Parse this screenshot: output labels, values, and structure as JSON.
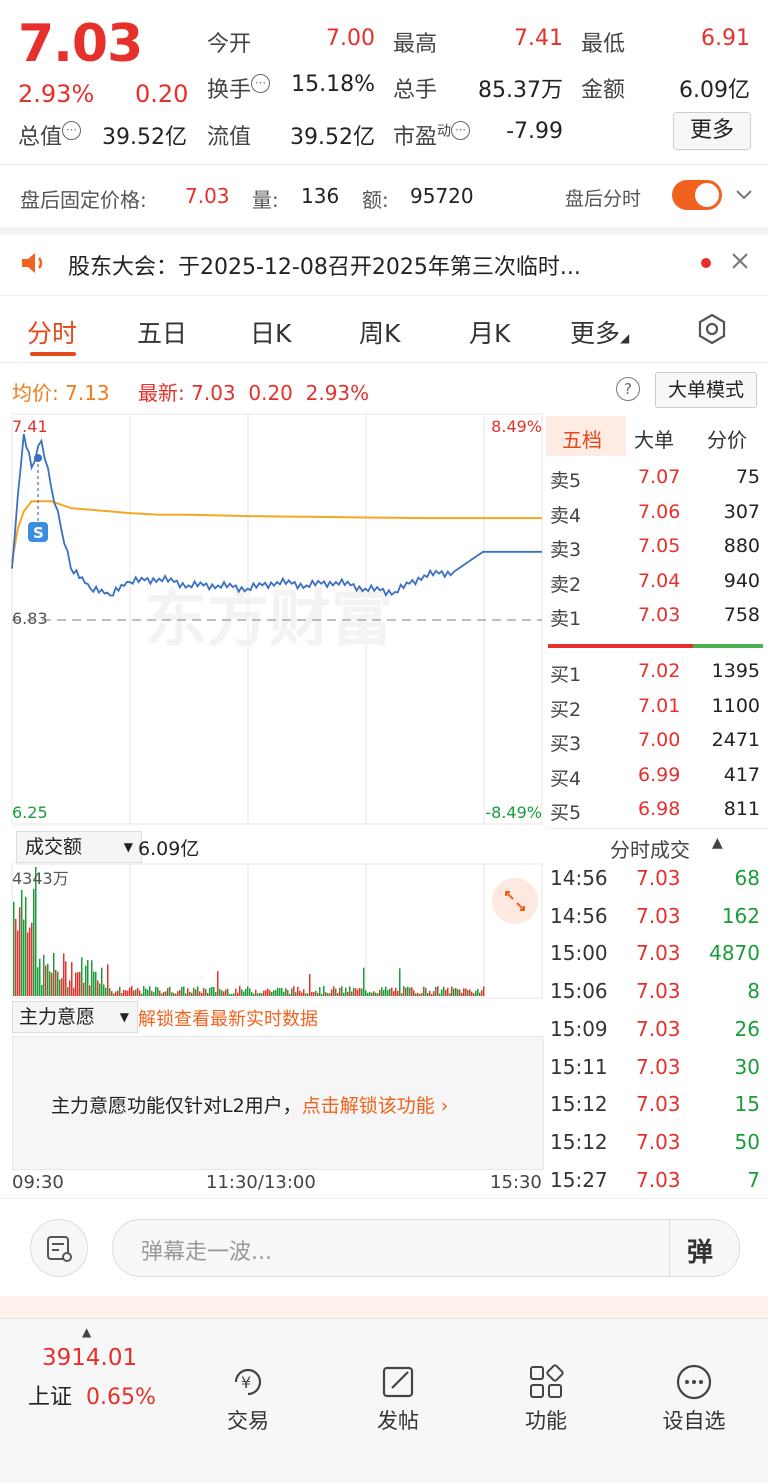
{
  "quote": {
    "price": "7.03",
    "change_pct": "2.93%",
    "change": "0.20",
    "open_label": "今开",
    "open": "7.00",
    "high_label": "最高",
    "high": "7.41",
    "low_label": "最低",
    "low": "6.91",
    "turnover_label": "换手",
    "turnover": "15.18%",
    "volume_label": "总手",
    "volume": "85.37万",
    "amount_label": "金额",
    "amount": "6.09亿",
    "mktcap_label": "总值",
    "mktcap": "39.52亿",
    "float_label": "流值",
    "float": "39.52亿",
    "pe_label": "市盈",
    "pe_sup": "动",
    "pe": "-7.99",
    "more": "更多"
  },
  "post_market": {
    "price_label": "盘后固定价格:",
    "price": "7.03",
    "vol_label": "量:",
    "vol": "136",
    "amt_label": "额:",
    "amt": "95720",
    "toggle_label": "盘后分时"
  },
  "notice": {
    "text": "股东大会：于2025-12-08召开2025年第三次临时..."
  },
  "tabs": [
    "分时",
    "五日",
    "日K",
    "周K",
    "月K",
    "更多"
  ],
  "avg_row": {
    "avg_label": "均价:",
    "avg": "7.13",
    "latest_label": "最新:",
    "latest": "7.03",
    "chg": "0.20",
    "pct": "2.93%",
    "mode": "大单模式"
  },
  "chart": {
    "y_top": "7.41",
    "y_bottom": "6.25",
    "y_mid": "6.83",
    "pct_top": "8.49%",
    "pct_bottom": "-8.49%",
    "s_marker": "S",
    "watermark": "东方财富",
    "vol_selector": "成交额",
    "vol_total": "6.09亿",
    "vol_max": "4343万",
    "flow_selector": "主力意愿",
    "flow_unlock": "解锁查看最新实时数据",
    "flow_msg": "主力意愿功能仅针对L2用户，",
    "flow_link": "点击解锁该功能",
    "x_start": "09:30",
    "x_mid": "11:30/13:00",
    "x_end": "15:30"
  },
  "chart_data": {
    "type": "line",
    "x": [
      "09:30",
      "09:33",
      "09:36",
      "09:40",
      "09:45",
      "09:50",
      "09:55",
      "10:00",
      "10:10",
      "10:20",
      "10:30",
      "10:45",
      "11:00",
      "11:15",
      "11:30",
      "13:15",
      "13:30",
      "13:45",
      "14:00",
      "14:15",
      "14:30",
      "14:45",
      "15:00",
      "15:30"
    ],
    "series": [
      {
        "values": [
          6.98,
          7.2,
          7.38,
          7.28,
          7.36,
          7.22,
          7.1,
          6.98,
          6.92,
          6.9,
          6.94,
          6.95,
          6.93,
          6.93,
          6.92,
          6.94,
          6.93,
          6.94,
          6.92,
          6.91,
          6.96,
          6.97,
          7.03,
          7.03
        ]
      },
      {
        "values": [
          7.0,
          7.1,
          7.15,
          7.18,
          7.18,
          7.18,
          7.17,
          7.16,
          7.155,
          7.15,
          7.145,
          7.14,
          7.14,
          7.138,
          7.136,
          7.135,
          7.134,
          7.133,
          7.132,
          7.131,
          7.13,
          7.13,
          7.13,
          7.13
        ]
      }
    ],
    "ylim": [
      6.25,
      7.41
    ],
    "reference": 6.83
  },
  "order_book": {
    "tabs": [
      "五档",
      "大单",
      "分价"
    ],
    "asks": [
      {
        "label": "卖5",
        "price": "7.07",
        "vol": "75"
      },
      {
        "label": "卖4",
        "price": "7.06",
        "vol": "307"
      },
      {
        "label": "卖3",
        "price": "7.05",
        "vol": "880"
      },
      {
        "label": "卖2",
        "price": "7.04",
        "vol": "940"
      },
      {
        "label": "卖1",
        "price": "7.03",
        "vol": "758"
      }
    ],
    "bids": [
      {
        "label": "买1",
        "price": "7.02",
        "vol": "1395"
      },
      {
        "label": "买2",
        "price": "7.01",
        "vol": "1100"
      },
      {
        "label": "买3",
        "price": "7.00",
        "vol": "2471"
      },
      {
        "label": "买4",
        "price": "6.99",
        "vol": "417"
      },
      {
        "label": "买5",
        "price": "6.98",
        "vol": "811"
      }
    ]
  },
  "trades": {
    "title": "分时成交",
    "rows": [
      {
        "time": "14:56",
        "price": "7.03",
        "vol": "68"
      },
      {
        "time": "14:56",
        "price": "7.03",
        "vol": "162"
      },
      {
        "time": "15:00",
        "price": "7.03",
        "vol": "4870"
      },
      {
        "time": "15:06",
        "price": "7.03",
        "vol": "8"
      },
      {
        "time": "15:09",
        "price": "7.03",
        "vol": "26"
      },
      {
        "time": "15:11",
        "price": "7.03",
        "vol": "30"
      },
      {
        "time": "15:12",
        "price": "7.03",
        "vol": "15"
      },
      {
        "time": "15:12",
        "price": "7.03",
        "vol": "50"
      },
      {
        "time": "15:27",
        "price": "7.03",
        "vol": "7"
      }
    ]
  },
  "comment": {
    "placeholder": "弹幕走一波...",
    "send": "弹"
  },
  "nav": {
    "index_value": "3914.01",
    "index_name": "上证",
    "index_pct": "0.65%",
    "items": [
      "交易",
      "发帖",
      "功能",
      "设自选"
    ]
  },
  "colors": {
    "up": "#e5302b",
    "down": "#1a9c3a",
    "price_line": "#3a6fc4",
    "avg_line": "#f5a623",
    "accent": "#f0621e"
  }
}
